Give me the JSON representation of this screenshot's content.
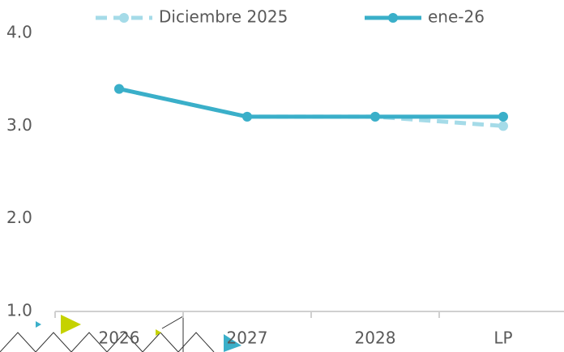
{
  "chart_data": {
    "type": "line",
    "categories": [
      "2026",
      "2027",
      "2028",
      "LP"
    ],
    "series": [
      {
        "name": "Diciembre 2025",
        "color": "#a5dbe8",
        "dashed": true,
        "values": [
          3.4,
          3.1,
          3.1,
          3.0
        ]
      },
      {
        "name": "ene-26",
        "color": "#3aafc9",
        "dashed": false,
        "values": [
          3.4,
          3.1,
          3.1,
          3.1
        ]
      }
    ],
    "ylim": [
      1.0,
      4.0
    ],
    "yticks": [
      {
        "value": 1,
        "label": "1.0"
      },
      {
        "value": 2,
        "label": "2.0"
      },
      {
        "value": 3,
        "label": "3.0"
      },
      {
        "value": 4,
        "label": "4.0"
      }
    ],
    "grid": false,
    "legend": "top"
  }
}
